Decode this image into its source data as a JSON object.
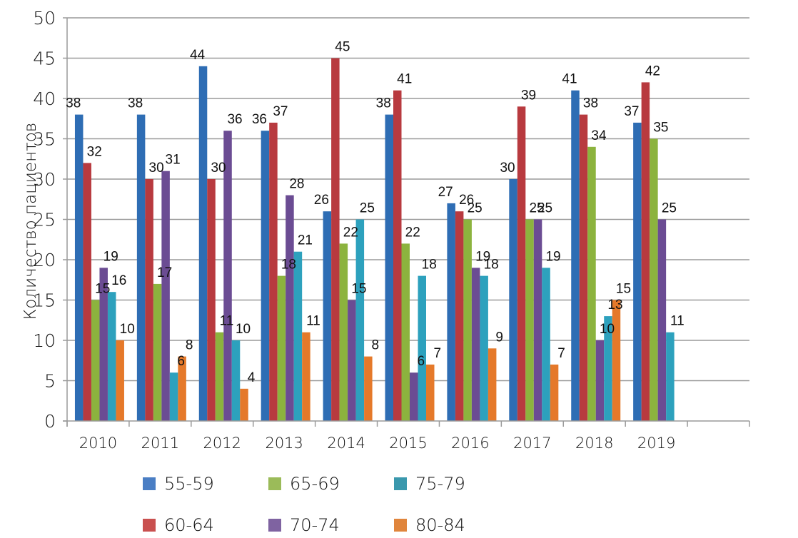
{
  "chart_data": {
    "type": "bar",
    "title": "",
    "xlabel": "",
    "ylabel": "Количество пациентов",
    "ylim": [
      0,
      50
    ],
    "yticks": [
      0,
      5,
      10,
      15,
      20,
      25,
      30,
      35,
      40,
      45,
      50
    ],
    "grid": true,
    "legend_position": "bottom",
    "categories": [
      "2010",
      "2011",
      "2012",
      "2013",
      "2014",
      "2015",
      "2016",
      "2017",
      "2018",
      "2019"
    ],
    "series": [
      {
        "name": "55-59",
        "color": "#2e6db4",
        "legend_color": "#4a7ec4",
        "values": [
          38,
          38,
          44,
          36,
          26,
          38,
          27,
          30,
          41,
          37
        ]
      },
      {
        "name": "60-64",
        "color": "#b83a3f",
        "legend_color": "#c9504f",
        "values": [
          32,
          30,
          30,
          37,
          45,
          41,
          26,
          39,
          38,
          42
        ]
      },
      {
        "name": "65-69",
        "color": "#8cb33e",
        "legend_color": "#9bbb59",
        "values": [
          15,
          17,
          11,
          18,
          22,
          22,
          25,
          25,
          34,
          35
        ]
      },
      {
        "name": "70-74",
        "color": "#6b4c93",
        "legend_color": "#7f63a1",
        "values": [
          19,
          31,
          36,
          28,
          15,
          6,
          19,
          25,
          10,
          25
        ]
      },
      {
        "name": "75-79",
        "color": "#2da1bd",
        "legend_color": "#3a98ad",
        "values": [
          16,
          6,
          10,
          21,
          25,
          18,
          18,
          19,
          13,
          11
        ]
      },
      {
        "name": "80-84",
        "color": "#e5792a",
        "legend_color": "#e0853c",
        "values": [
          10,
          8,
          4,
          11,
          8,
          7,
          9,
          7,
          15,
          null
        ]
      }
    ],
    "legend_rows": [
      [
        "55-59",
        "65-69",
        "75-79"
      ],
      [
        "60-64",
        "70-74",
        "80-84"
      ]
    ]
  }
}
